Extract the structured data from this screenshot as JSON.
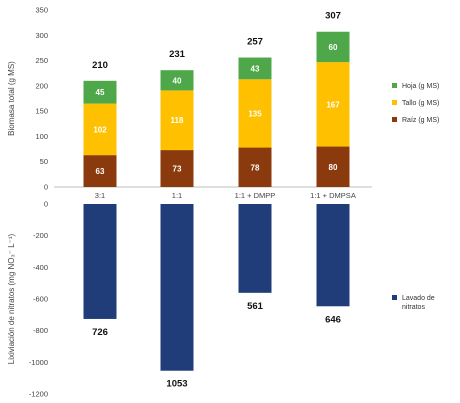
{
  "chart_data": [
    {
      "type": "bar",
      "stacked": true,
      "categories": [
        "3:1",
        "1:1",
        "1:1 + DMPP",
        "1:1 + DMPSA"
      ],
      "series": [
        {
          "name": "Raíz (g MS)",
          "values": [
            63,
            73,
            78,
            80
          ],
          "color": "#8B3A0E"
        },
        {
          "name": "Tallo (g MS)",
          "values": [
            102,
            118,
            135,
            167
          ],
          "color": "#FFC000"
        },
        {
          "name": "Hoja (g MS)",
          "values": [
            45,
            40,
            43,
            60
          ],
          "color": "#4EA84A"
        }
      ],
      "totals": [
        210,
        231,
        257,
        307
      ],
      "ylabel": "Biomasa total (g MS)",
      "ylim": [
        0,
        350
      ],
      "yticks": [
        0,
        50,
        100,
        150,
        200,
        250,
        300,
        350
      ],
      "legend_order": [
        "Hoja (g MS)",
        "Tallo (g MS)",
        "Raíz (g MS)"
      ],
      "legend_position": "right",
      "grid": false
    },
    {
      "type": "bar",
      "categories": [
        "3:1",
        "1:1",
        "1:1 + DMPP",
        "1:1 + DMPSA"
      ],
      "series": [
        {
          "name": "Lavado de nitratos",
          "values": [
            -726,
            -1053,
            -561,
            -646
          ],
          "color": "#203D7A"
        }
      ],
      "data_labels": [
        "726",
        "1053",
        "561",
        "646"
      ],
      "ylabel": "Lixiviación de nitratos (mg NO₃⁻ L⁻¹)",
      "ylim": [
        -1200,
        0
      ],
      "yticks": [
        0,
        -200,
        -400,
        -600,
        -800,
        -1000,
        -1200
      ],
      "legend_position": "right",
      "grid": false
    }
  ]
}
